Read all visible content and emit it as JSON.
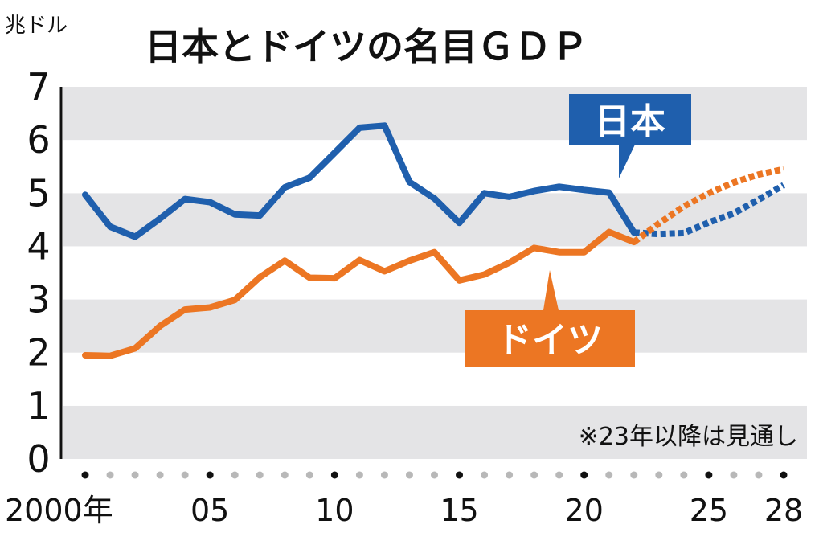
{
  "chart_data": {
    "type": "line",
    "title": "日本とドイツの名目ＧＤＰ",
    "ylabel": "兆ドル",
    "ylim": [
      0,
      7
    ],
    "yticks": [
      "0",
      "1",
      "2",
      "3",
      "4",
      "5",
      "6",
      "7"
    ],
    "xlim": [
      2000,
      2028
    ],
    "xticks": [
      {
        "x": 2000,
        "label": "2000年"
      },
      {
        "x": 2005,
        "label": "05"
      },
      {
        "x": 2010,
        "label": "10"
      },
      {
        "x": 2015,
        "label": "15"
      },
      {
        "x": 2020,
        "label": "20"
      },
      {
        "x": 2025,
        "label": "25"
      },
      {
        "x": 2028,
        "label": "28"
      }
    ],
    "grid": "horizontal bands",
    "note": "※23年以降は見通し",
    "forecast_from": 2022,
    "series": [
      {
        "name": "日本",
        "color": "#1f5fad",
        "x": [
          2000,
          2001,
          2002,
          2003,
          2004,
          2005,
          2006,
          2007,
          2008,
          2009,
          2010,
          2011,
          2012,
          2013,
          2014,
          2015,
          2016,
          2017,
          2018,
          2019,
          2020,
          2021,
          2022,
          2023,
          2024,
          2025,
          2026,
          2027,
          2028
        ],
        "values": [
          4.97,
          4.37,
          4.18,
          4.52,
          4.89,
          4.83,
          4.6,
          4.58,
          5.11,
          5.29,
          5.76,
          6.23,
          6.27,
          5.21,
          4.9,
          4.44,
          5.0,
          4.93,
          5.04,
          5.12,
          5.06,
          5.01,
          4.26,
          4.23,
          4.25,
          4.45,
          4.62,
          4.88,
          5.15
        ]
      },
      {
        "name": "ドイツ",
        "color": "#ec7623",
        "x": [
          2000,
          2001,
          2002,
          2003,
          2004,
          2005,
          2006,
          2007,
          2008,
          2009,
          2010,
          2011,
          2012,
          2013,
          2014,
          2015,
          2016,
          2017,
          2018,
          2019,
          2020,
          2021,
          2022,
          2023,
          2024,
          2025,
          2026,
          2027,
          2028
        ],
        "values": [
          1.95,
          1.94,
          2.08,
          2.5,
          2.81,
          2.85,
          2.99,
          3.42,
          3.73,
          3.41,
          3.4,
          3.74,
          3.53,
          3.73,
          3.89,
          3.36,
          3.47,
          3.69,
          3.97,
          3.89,
          3.89,
          4.27,
          4.08,
          4.43,
          4.75,
          5.0,
          5.2,
          5.35,
          5.45
        ]
      }
    ]
  }
}
